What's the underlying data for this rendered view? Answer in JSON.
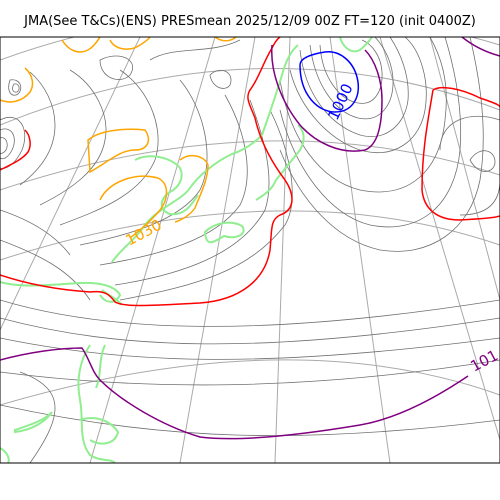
{
  "title": "JMA(See T&Cs)(ENS) PRESmean 2025/12/09 00Z FT=120 (init 0400Z)",
  "contour_labels": {
    "low_center": "1000",
    "high_left": "1030",
    "right_edge": "101"
  },
  "colors": {
    "isobar": "#707070",
    "graticule": "#aaaaaa",
    "line_1000": "#0000ff",
    "line_1030": "#ffa500",
    "line_red": "#ff0000",
    "line_purple": "#800080",
    "coast": "#90ee90"
  }
}
